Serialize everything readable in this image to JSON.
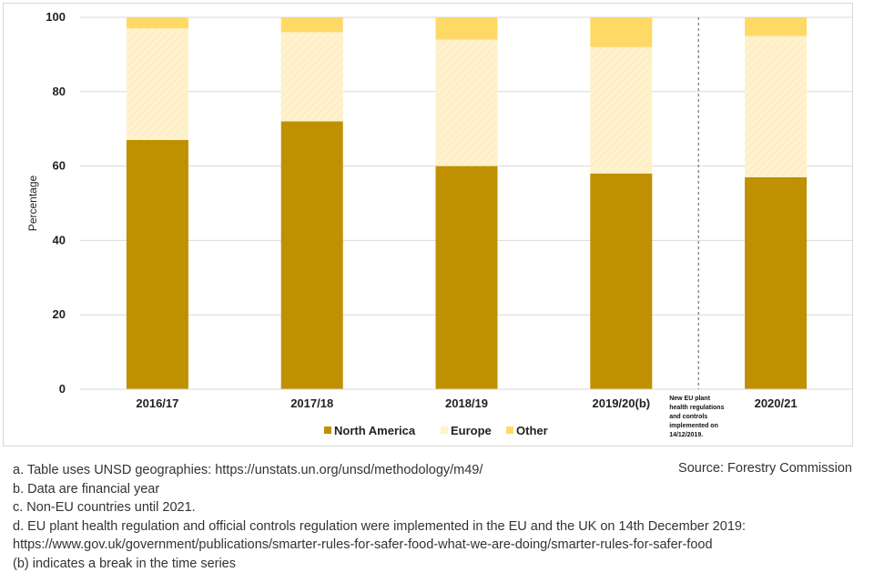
{
  "chart_data": {
    "type": "bar",
    "stacked": true,
    "categories": [
      "2016/17",
      "2017/18",
      "2018/19",
      "2019/20(b)",
      "2020/21"
    ],
    "series": [
      {
        "name": "North America",
        "values": [
          67,
          72,
          60,
          58,
          57
        ],
        "color": "#bf9000"
      },
      {
        "name": "Europe",
        "values": [
          30,
          24,
          34,
          34,
          38
        ],
        "color": "#fff2cc"
      },
      {
        "name": "Other",
        "values": [
          3,
          4,
          6,
          8,
          5
        ],
        "color": "#ffd966"
      }
    ],
    "ylabel": "Percentage",
    "ylim": [
      0,
      100
    ],
    "yticks": [
      0,
      20,
      40,
      60,
      80,
      100
    ],
    "grid": true,
    "legend_position": "bottom",
    "break_annotation": {
      "after_category": "2019/20(b)",
      "lines": [
        "New EU plant",
        "health regulations",
        "and controls",
        "implemented on",
        "14/12/2019."
      ]
    }
  },
  "notes": [
    "a. Table uses UNSD geographies: https://unstats.un.org/unsd/methodology/m49/",
    "b. Data are financial year",
    "c. Non-EU countries until 2021.",
    "d. EU plant health regulation and official controls regulation were implemented in the EU and the UK on 14th December 2019:",
    "https://www.gov.uk/government/publications/smarter-rules-for-safer-food-what-we-are-doing/smarter-rules-for-safer-food",
    "(b) indicates a break in the time series"
  ],
  "source": "Source: Forestry Commission"
}
